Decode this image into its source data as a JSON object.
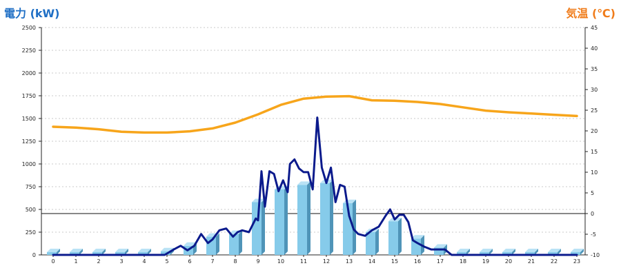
{
  "chart_data": {
    "type": "bar+line",
    "ylabel_left": "電力 (kW)",
    "ylabel_right": "気温 (℃)",
    "ylim_left": [
      0,
      2500
    ],
    "ylim_right": [
      -10,
      45
    ],
    "yticks_left": [
      "0",
      "250",
      "500",
      "750",
      "1000",
      "1250",
      "1500",
      "1750",
      "2000",
      "2250",
      "2500"
    ],
    "yticks_right": [
      "-10",
      "-5",
      "0",
      "5",
      "10",
      "15",
      "20",
      "25",
      "30",
      "35",
      "40",
      "45"
    ],
    "categories": [
      "0",
      "1",
      "2",
      "3",
      "4",
      "5",
      "6",
      "7",
      "8",
      "9",
      "10",
      "11",
      "12",
      "13",
      "14",
      "15",
      "16",
      "17",
      "18",
      "19",
      "20",
      "21",
      "22",
      "23"
    ],
    "bar_series": {
      "values": [
        30,
        30,
        30,
        30,
        30,
        40,
        100,
        200,
        230,
        580,
        720,
        770,
        790,
        570,
        250,
        370,
        180,
        80,
        30,
        30,
        30,
        30,
        30,
        30
      ]
    },
    "power_line": {
      "x": [
        0,
        1,
        2,
        3,
        4,
        4.9,
        5.3,
        5.6,
        5.9,
        6.2,
        6.5,
        6.8,
        7.0,
        7.3,
        7.6,
        7.9,
        8.1,
        8.3,
        8.6,
        8.9,
        9.0,
        9.15,
        9.3,
        9.5,
        9.7,
        9.9,
        10.1,
        10.3,
        10.4,
        10.6,
        10.8,
        11.0,
        11.2,
        11.4,
        11.6,
        11.8,
        12.0,
        12.2,
        12.4,
        12.6,
        12.8,
        13.0,
        13.2,
        13.4,
        13.7,
        14.0,
        14.3,
        14.6,
        14.8,
        15.0,
        15.2,
        15.4,
        15.6,
        15.8,
        16.0,
        16.3,
        16.6,
        16.9,
        17.2,
        17.5,
        18,
        19,
        20,
        21,
        22,
        23
      ],
      "values": [
        0,
        0,
        0,
        0,
        0,
        0,
        60,
        100,
        50,
        100,
        230,
        130,
        170,
        270,
        290,
        200,
        250,
        270,
        250,
        400,
        380,
        920,
        530,
        920,
        890,
        700,
        820,
        690,
        1000,
        1050,
        950,
        910,
        910,
        720,
        1510,
        960,
        790,
        960,
        580,
        770,
        750,
        430,
        280,
        230,
        210,
        270,
        310,
        430,
        500,
        390,
        440,
        440,
        360,
        160,
        130,
        90,
        60,
        60,
        60,
        0,
        0,
        0,
        0,
        0,
        0,
        0
      ]
    },
    "temperature_line": {
      "x": [
        0,
        1,
        2,
        3,
        4,
        5,
        6,
        7,
        8,
        9,
        10,
        11,
        12,
        13,
        14,
        15,
        16,
        17,
        18,
        19,
        20,
        21,
        22,
        23
      ],
      "values": [
        21,
        20.8,
        20.4,
        19.8,
        19.6,
        19.6,
        19.9,
        20.6,
        22.0,
        24.0,
        26.3,
        27.8,
        28.3,
        28.4,
        27.4,
        27.3,
        27.0,
        26.5,
        25.7,
        24.9,
        24.5,
        24.2,
        23.9,
        23.6
      ]
    },
    "colors": {
      "bar_front": "#86cbea",
      "bar_side": "#4f94b8",
      "bar_top": "#b9e2f5",
      "power_line": "#0b1a8c",
      "temperature_line": "#f7a51b",
      "left_title": "#1f6fc5",
      "right_title": "#f07c1a",
      "grid": "#c8c8c8"
    },
    "grid": true,
    "legend": "none"
  }
}
